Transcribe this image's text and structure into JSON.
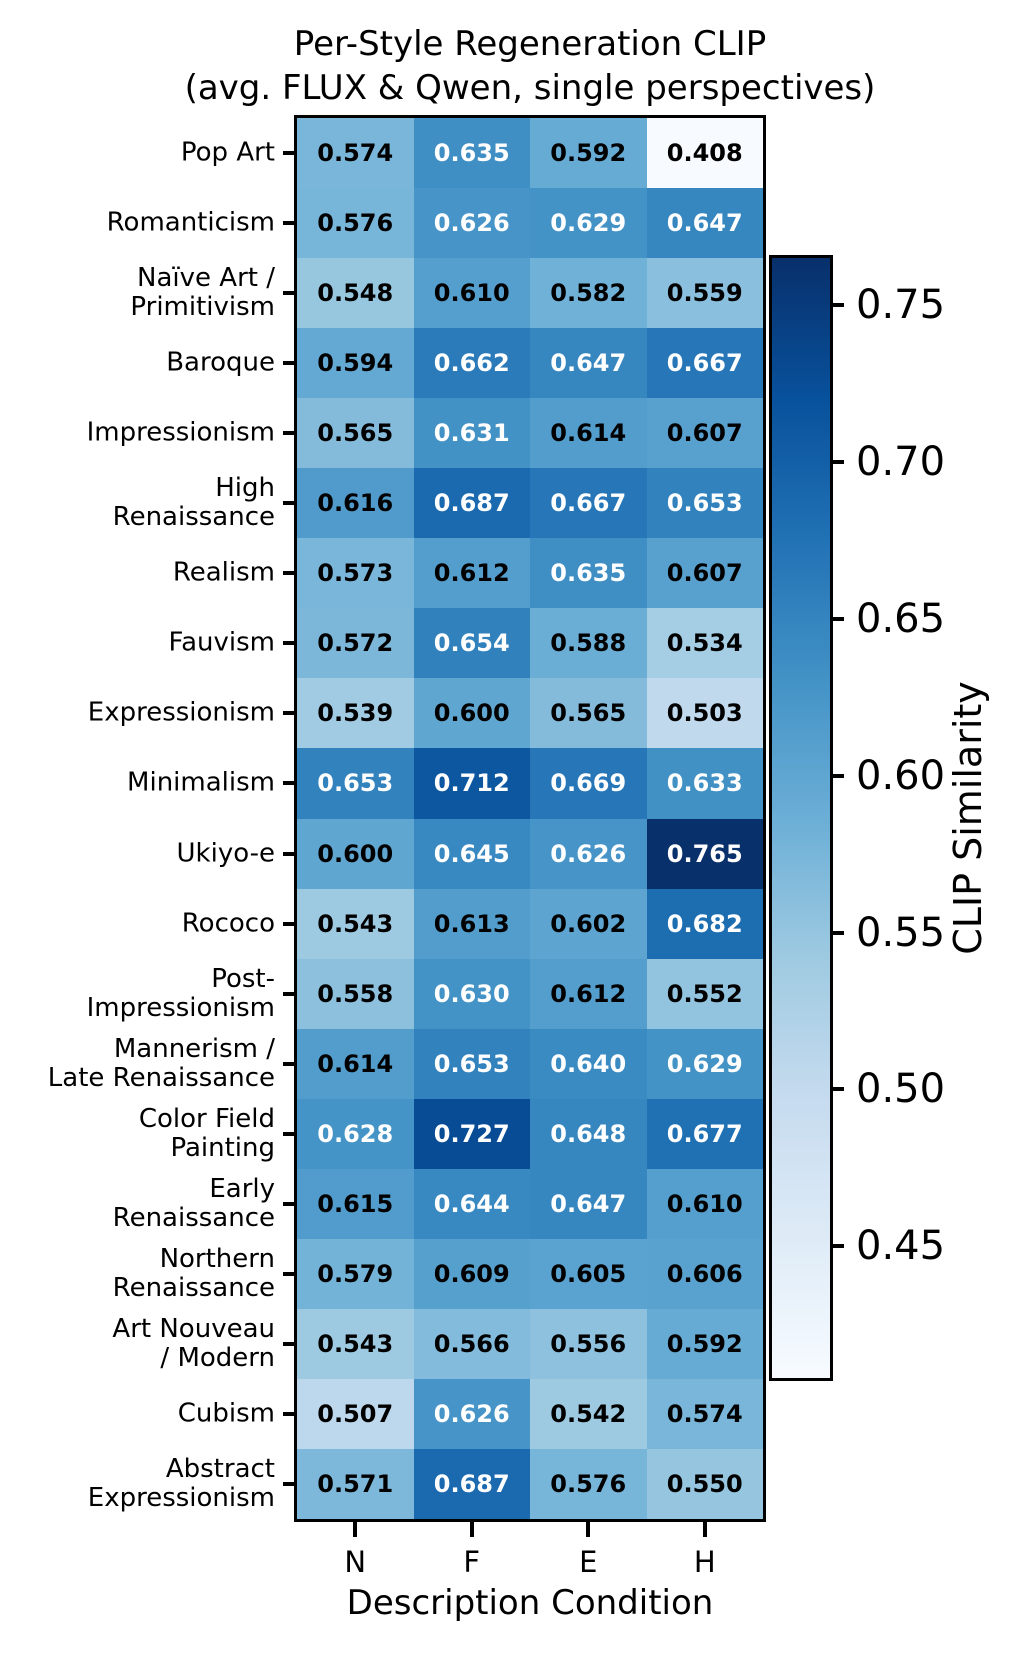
{
  "chart_data": {
    "type": "heatmap",
    "title": "Per-Style Regeneration CLIP\n(avg. FLUX & Qwen, single perspectives)",
    "xlabel": "Description Condition",
    "colorbar_label": "CLIP Similarity",
    "colormap": "Blues",
    "vmin": 0.408,
    "vmax": 0.765,
    "text_color_threshold": 0.6,
    "colorbar_ticks": [
      0.75,
      0.7,
      0.65,
      0.6,
      0.55,
      0.5,
      0.45
    ],
    "x_categories": [
      "N",
      "F",
      "E",
      "H"
    ],
    "y_categories": [
      "Pop Art",
      "Romanticism",
      "Naïve Art /\nPrimitivism",
      "Baroque",
      "Impressionism",
      "High\nRenaissance",
      "Realism",
      "Fauvism",
      "Expressionism",
      "Minimalism",
      "Ukiyo-e",
      "Rococo",
      "Post-\nImpressionism",
      "Mannerism /\nLate Renaissance",
      "Color Field\nPainting",
      "Early\nRenaissance",
      "Northern\nRenaissance",
      "Art Nouveau\n/ Modern",
      "Cubism",
      "Abstract\nExpressionism"
    ],
    "values": [
      [
        0.574,
        0.635,
        0.592,
        0.408
      ],
      [
        0.576,
        0.626,
        0.629,
        0.647
      ],
      [
        0.548,
        0.61,
        0.582,
        0.559
      ],
      [
        0.594,
        0.662,
        0.647,
        0.667
      ],
      [
        0.565,
        0.631,
        0.614,
        0.607
      ],
      [
        0.616,
        0.687,
        0.667,
        0.653
      ],
      [
        0.573,
        0.612,
        0.635,
        0.607
      ],
      [
        0.572,
        0.654,
        0.588,
        0.534
      ],
      [
        0.539,
        0.6,
        0.565,
        0.503
      ],
      [
        0.653,
        0.712,
        0.669,
        0.633
      ],
      [
        0.6,
        0.645,
        0.626,
        0.765
      ],
      [
        0.543,
        0.613,
        0.602,
        0.682
      ],
      [
        0.558,
        0.63,
        0.612,
        0.552
      ],
      [
        0.614,
        0.653,
        0.64,
        0.629
      ],
      [
        0.628,
        0.727,
        0.648,
        0.677
      ],
      [
        0.615,
        0.644,
        0.647,
        0.61
      ],
      [
        0.579,
        0.609,
        0.605,
        0.606
      ],
      [
        0.543,
        0.566,
        0.556,
        0.592
      ],
      [
        0.507,
        0.626,
        0.542,
        0.574
      ],
      [
        0.571,
        0.687,
        0.576,
        0.55
      ]
    ],
    "colormap_stops": [
      "#f7fbff",
      "#deebf7",
      "#c6dbef",
      "#9ecae1",
      "#6baed6",
      "#4292c6",
      "#2171b5",
      "#08519c",
      "#08306b"
    ],
    "cell_text_colors": {
      "dark": "#000000",
      "light": "#ffffff"
    }
  }
}
